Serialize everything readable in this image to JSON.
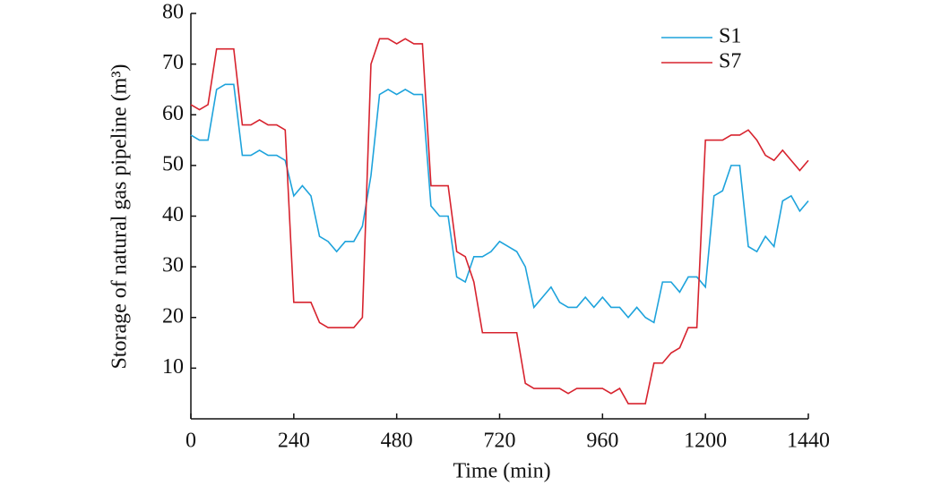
{
  "chart_data": {
    "type": "line",
    "x_label": "Time (min)",
    "y_label": "Storage of natural gas pipeline (m³)",
    "x": [
      0,
      20,
      40,
      60,
      80,
      100,
      120,
      140,
      160,
      180,
      200,
      220,
      240,
      260,
      280,
      300,
      320,
      340,
      360,
      380,
      400,
      420,
      440,
      460,
      480,
      500,
      520,
      540,
      560,
      580,
      600,
      620,
      640,
      660,
      680,
      700,
      720,
      740,
      760,
      780,
      800,
      820,
      840,
      860,
      880,
      900,
      920,
      940,
      960,
      980,
      1000,
      1020,
      1040,
      1060,
      1080,
      1100,
      1120,
      1140,
      1160,
      1180,
      1200,
      1220,
      1240,
      1260,
      1280,
      1300,
      1320,
      1340,
      1360,
      1380,
      1400,
      1420,
      1440
    ],
    "series": [
      {
        "name": "S1",
        "color": "#1ea3dc",
        "values": [
          56,
          55,
          55,
          65,
          66,
          66,
          52,
          52,
          53,
          52,
          52,
          51,
          44,
          46,
          44,
          36,
          35,
          33,
          35,
          35,
          38,
          48,
          64,
          65,
          64,
          65,
          64,
          64,
          42,
          40,
          40,
          28,
          27,
          32,
          32,
          33,
          35,
          34,
          33,
          30,
          22,
          24,
          26,
          23,
          22,
          22,
          24,
          22,
          24,
          22,
          22,
          20,
          22,
          20,
          19,
          27,
          27,
          25,
          28,
          28,
          26,
          44,
          45,
          50,
          50,
          34,
          33,
          36,
          34,
          43,
          44,
          41,
          43
        ]
      },
      {
        "name": "S7",
        "color": "#d7232e",
        "values": [
          62,
          61,
          62,
          73,
          73,
          73,
          58,
          58,
          59,
          58,
          58,
          57,
          23,
          23,
          23,
          19,
          18,
          18,
          18,
          18,
          20,
          70,
          75,
          75,
          74,
          75,
          74,
          74,
          46,
          46,
          46,
          33,
          32,
          27,
          17,
          17,
          17,
          17,
          17,
          7,
          6,
          6,
          6,
          6,
          5,
          6,
          6,
          6,
          6,
          5,
          6,
          3,
          3,
          3,
          11,
          11,
          13,
          14,
          18,
          18,
          55,
          55,
          55,
          56,
          56,
          57,
          55,
          52,
          51,
          53,
          51,
          49,
          51
        ]
      }
    ],
    "xlim": [
      0,
      1440
    ],
    "xticks": [
      0,
      240,
      480,
      720,
      960,
      1200,
      1440
    ],
    "ylim": [
      0,
      80
    ],
    "yticks": [
      10,
      20,
      30,
      40,
      50,
      60,
      70,
      80
    ],
    "grid": false,
    "legend": "upper right"
  }
}
